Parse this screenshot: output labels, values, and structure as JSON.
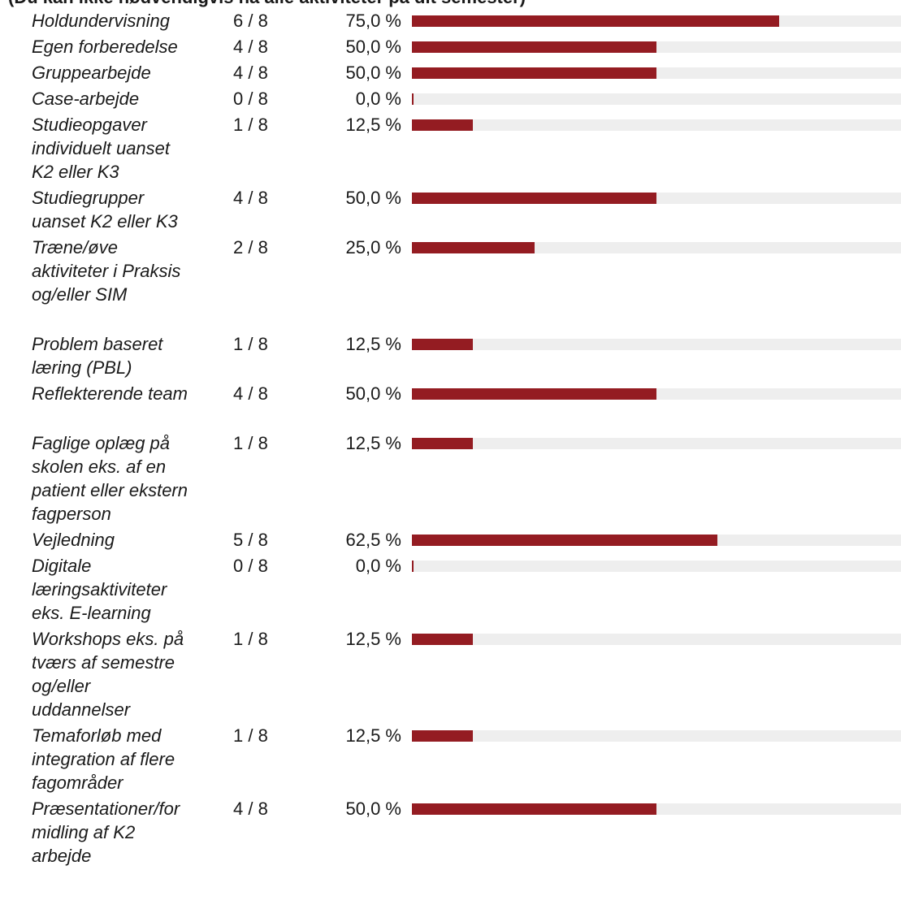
{
  "title": "(Du kan ikke nødvendigvis nå alle aktiviteter på dit semester)",
  "colors": {
    "bar_fill": "#941c22",
    "bar_track": "#eeeeee",
    "text": "#1a1a1a"
  },
  "chart_data": {
    "type": "bar",
    "orientation": "horizontal",
    "categories": [
      "Holdundervisning",
      "Egen forberedelse",
      "Gruppearbejde",
      "Case-arbejde",
      "Studieopgaver individuelt uanset K2 eller K3",
      "Studiegrupper uanset K2 eller K3",
      "Træne/øve aktiviteter i Praksis og/eller SIM",
      "Problem baseret læring (PBL)",
      "Reflekterende team",
      "Faglige oplæg på skolen eks. af en patient eller ekstern fagperson",
      "Vejledning",
      "Digitale læringsaktiviteter eks. E-learning",
      "Workshops eks. på tværs af semestre og/eller uddannelser",
      "Temaforløb med integration af flere fagområder",
      "Præsentationer/formidling af K2 arbejde"
    ],
    "counts": [
      "6 / 8",
      "4 / 8",
      "4 / 8",
      "0 / 8",
      "1 / 8",
      "4 / 8",
      "2 / 8",
      "1 / 8",
      "4 / 8",
      "1 / 8",
      "5 / 8",
      "0 / 8",
      "1 / 8",
      "1 / 8",
      "4 / 8"
    ],
    "values": [
      75.0,
      50.0,
      50.0,
      0.0,
      12.5,
      50.0,
      25.0,
      12.5,
      50.0,
      12.5,
      62.5,
      0.0,
      12.5,
      12.5,
      50.0
    ],
    "value_labels": [
      "75,0 %",
      "50,0 %",
      "50,0 %",
      "0,0 %",
      "12,5 %",
      "50,0 %",
      "25,0 %",
      "12,5 %",
      "50,0 %",
      "12,5 %",
      "62,5 %",
      "0,0 %",
      "12,5 %",
      "12,5 %",
      "50,0 %"
    ],
    "xlim": [
      0,
      100
    ],
    "grid": false
  }
}
